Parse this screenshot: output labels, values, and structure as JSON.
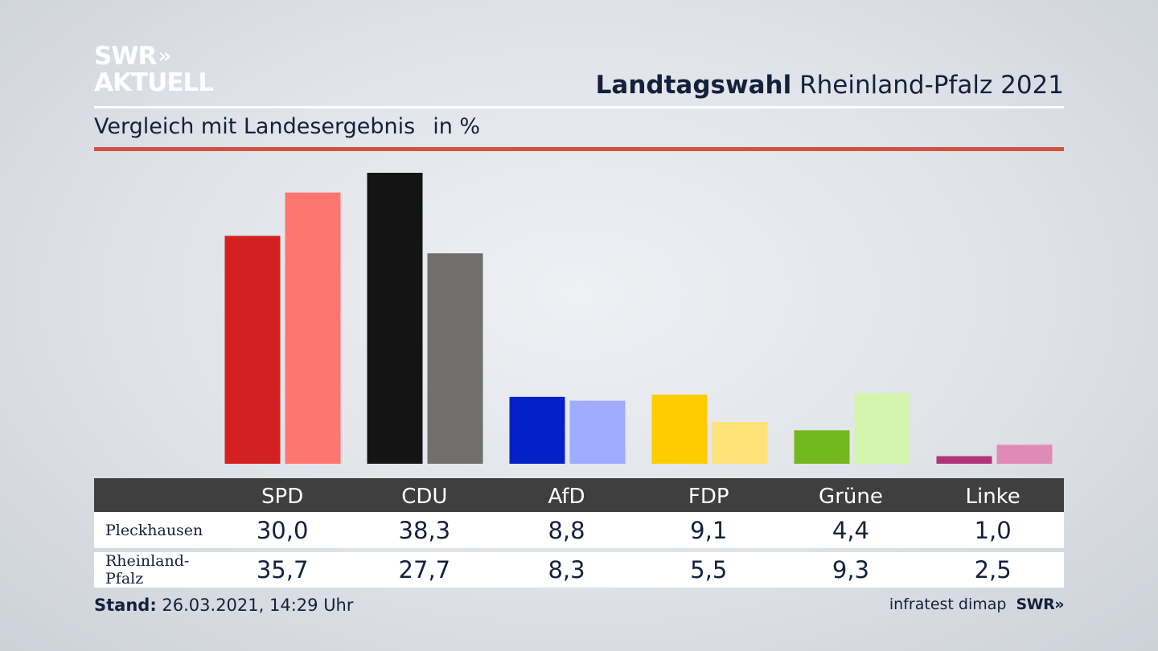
{
  "header": {
    "logo_line1": "SWR",
    "logo_chevrons": "»",
    "logo_line2": "AKTUELL",
    "title_bold": "Landtagswahl",
    "title_rest": "Rheinland-Pfalz 2021",
    "subtitle": "Vergleich mit Landesergebnis",
    "unit": "in %"
  },
  "colors": {
    "accent_red_rule": "#d3523f",
    "table_header_bg": "#3f3f3f"
  },
  "chart_data": {
    "type": "bar",
    "categories": [
      "SPD",
      "CDU",
      "AfD",
      "FDP",
      "Grüne",
      "Linke"
    ],
    "series": [
      {
        "name": "Pleckhausen",
        "values": [
          30.0,
          38.3,
          8.8,
          9.1,
          4.4,
          1.0
        ],
        "colors": [
          "#d42020",
          "#141414",
          "#0420c8",
          "#ffcc00",
          "#72b81e",
          "#b03578"
        ]
      },
      {
        "name": "Rheinland-Pfalz",
        "values": [
          35.7,
          27.7,
          8.3,
          5.5,
          9.3,
          2.5
        ],
        "colors": [
          "#ff7570",
          "#706f6d",
          "#9eabff",
          "#ffe277",
          "#d4f5ad",
          "#e08ab8"
        ]
      }
    ],
    "display_values": [
      [
        "30,0",
        "38,3",
        "8,8",
        "9,1",
        "4,4",
        "1,0"
      ],
      [
        "35,7",
        "27,7",
        "8,3",
        "5,5",
        "9,3",
        "2,5"
      ]
    ],
    "ylim": [
      0,
      38.3
    ],
    "grid": false
  },
  "footer": {
    "stand_label": "Stand:",
    "stand_value": "26.03.2021, 14:29 Uhr",
    "source": "infratest dimap",
    "brand": "SWR»"
  }
}
